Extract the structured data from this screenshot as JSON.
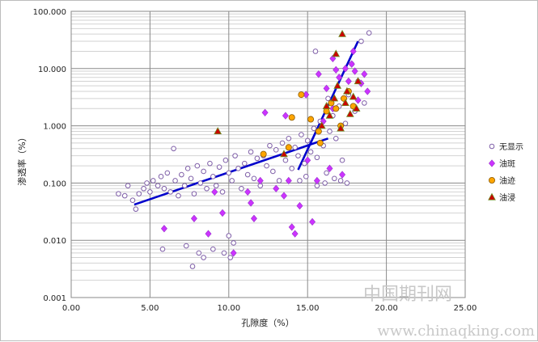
{
  "chart_data": {
    "type": "scatter",
    "title": "",
    "xlabel": "孔隙度（%）",
    "ylabel": "渗透率（%）",
    "x_ticks": [
      "0.00",
      "5.00",
      "10.00",
      "15.00",
      "20.00",
      "25.00"
    ],
    "y_ticks": [
      "100.000",
      "10.000",
      "1.000",
      "0.100",
      "0.010",
      "0.001"
    ],
    "xlim": [
      0,
      25
    ],
    "ylim": [
      0.001,
      100
    ],
    "y_scale": "log",
    "grid": true,
    "legend_position": "right",
    "series": [
      {
        "name": "无显示",
        "marker": "open-circle",
        "color": "#7f5fa8",
        "points": [
          [
            3.0,
            0.065
          ],
          [
            3.4,
            0.06
          ],
          [
            3.6,
            0.09
          ],
          [
            3.9,
            0.05
          ],
          [
            4.1,
            0.035
          ],
          [
            4.3,
            0.065
          ],
          [
            4.6,
            0.08
          ],
          [
            4.8,
            0.1
          ],
          [
            5.0,
            0.07
          ],
          [
            5.2,
            0.11
          ],
          [
            5.5,
            0.09
          ],
          [
            5.7,
            0.13
          ],
          [
            5.9,
            0.08
          ],
          [
            6.1,
            0.15
          ],
          [
            6.3,
            0.07
          ],
          [
            6.5,
            0.4
          ],
          [
            6.6,
            0.11
          ],
          [
            6.8,
            0.06
          ],
          [
            7.0,
            0.14
          ],
          [
            7.2,
            0.09
          ],
          [
            7.4,
            0.18
          ],
          [
            7.6,
            0.12
          ],
          [
            7.8,
            0.065
          ],
          [
            8.0,
            0.2
          ],
          [
            8.2,
            0.1
          ],
          [
            8.4,
            0.16
          ],
          [
            8.6,
            0.08
          ],
          [
            8.8,
            0.22
          ],
          [
            9.0,
            0.13
          ],
          [
            9.2,
            0.09
          ],
          [
            9.4,
            0.19
          ],
          [
            9.6,
            0.07
          ],
          [
            9.8,
            0.25
          ],
          [
            10.0,
            0.15
          ],
          [
            10.2,
            0.11
          ],
          [
            10.4,
            0.3
          ],
          [
            10.6,
            0.18
          ],
          [
            10.8,
            0.08
          ],
          [
            11.0,
            0.22
          ],
          [
            11.2,
            0.14
          ],
          [
            11.4,
            0.35
          ],
          [
            11.6,
            0.12
          ],
          [
            11.8,
            0.27
          ],
          [
            12.0,
            0.09
          ],
          [
            12.2,
            0.3
          ],
          [
            12.4,
            0.2
          ],
          [
            12.6,
            0.45
          ],
          [
            12.8,
            0.16
          ],
          [
            13.0,
            0.38
          ],
          [
            13.2,
            0.11
          ],
          [
            13.4,
            0.5
          ],
          [
            13.6,
            0.25
          ],
          [
            13.8,
            0.6
          ],
          [
            14.0,
            0.18
          ],
          [
            14.2,
            0.42
          ],
          [
            14.4,
            0.3
          ],
          [
            14.6,
            0.7
          ],
          [
            14.8,
            0.22
          ],
          [
            15.0,
            0.55
          ],
          [
            15.2,
            0.35
          ],
          [
            15.4,
            0.9
          ],
          [
            15.6,
            0.28
          ],
          [
            15.8,
            1.2
          ],
          [
            16.0,
            0.45
          ],
          [
            16.2,
            0.15
          ],
          [
            16.4,
            0.8
          ],
          [
            16.6,
            1.5
          ],
          [
            16.8,
            0.6
          ],
          [
            17.0,
            2.2
          ],
          [
            17.2,
            0.25
          ],
          [
            17.4,
            1.1
          ],
          [
            17.6,
            3.5
          ],
          [
            17.8,
            12.0
          ],
          [
            18.0,
            1.8
          ],
          [
            18.2,
            6.0
          ],
          [
            18.4,
            30.0
          ],
          [
            18.6,
            2.5
          ],
          [
            18.9,
            42.0
          ],
          [
            15.5,
            20.0
          ],
          [
            16.3,
            3.0
          ],
          [
            7.3,
            0.008
          ],
          [
            7.7,
            0.0035
          ],
          [
            8.1,
            0.006
          ],
          [
            8.4,
            0.005
          ],
          [
            9.0,
            0.007
          ],
          [
            9.7,
            0.006
          ],
          [
            10.0,
            0.012
          ],
          [
            10.1,
            0.005
          ],
          [
            10.3,
            0.009
          ],
          [
            5.8,
            0.007
          ],
          [
            14.5,
            0.11
          ],
          [
            14.9,
            0.13
          ],
          [
            15.6,
            0.09
          ],
          [
            16.1,
            0.1
          ],
          [
            16.7,
            0.12
          ],
          [
            17.1,
            0.11
          ],
          [
            17.5,
            0.1
          ]
        ]
      },
      {
        "name": "油斑",
        "marker": "diamond",
        "color": "#cc33ff",
        "points": [
          [
            5.9,
            0.016
          ],
          [
            7.8,
            0.024
          ],
          [
            8.7,
            0.013
          ],
          [
            9.1,
            0.07
          ],
          [
            9.6,
            0.03
          ],
          [
            10.3,
            0.006
          ],
          [
            11.2,
            0.07
          ],
          [
            11.4,
            0.045
          ],
          [
            11.6,
            0.024
          ],
          [
            12.0,
            0.11
          ],
          [
            12.3,
            1.7
          ],
          [
            13.0,
            0.08
          ],
          [
            13.5,
            0.06
          ],
          [
            13.8,
            0.11
          ],
          [
            14.0,
            0.017
          ],
          [
            14.2,
            0.013
          ],
          [
            14.5,
            0.04
          ],
          [
            14.9,
            3.5
          ],
          [
            15.0,
            0.25
          ],
          [
            15.3,
            0.021
          ],
          [
            15.6,
            0.11
          ],
          [
            15.7,
            8.0
          ],
          [
            16.0,
            1.2
          ],
          [
            16.2,
            4.5
          ],
          [
            16.4,
            0.18
          ],
          [
            16.6,
            2.0
          ],
          [
            16.8,
            9.5
          ],
          [
            17.0,
            7.0
          ],
          [
            17.2,
            0.14
          ],
          [
            17.4,
            10.0
          ],
          [
            17.6,
            6.0
          ],
          [
            17.8,
            12.0
          ],
          [
            18.0,
            9.0
          ],
          [
            18.2,
            2.8
          ],
          [
            18.4,
            5.5
          ],
          [
            18.6,
            8.0
          ],
          [
            18.8,
            4.0
          ],
          [
            17.9,
            20.0
          ],
          [
            16.6,
            15.0
          ],
          [
            13.6,
            1.5
          ]
        ]
      },
      {
        "name": "油迹",
        "marker": "filled-circle",
        "color": "#ffa500",
        "points": [
          [
            12.2,
            0.32
          ],
          [
            13.8,
            0.42
          ],
          [
            14.0,
            1.4
          ],
          [
            14.6,
            3.5
          ],
          [
            15.2,
            1.3
          ],
          [
            15.7,
            0.8
          ],
          [
            16.2,
            1.8
          ],
          [
            16.5,
            2.5
          ],
          [
            16.8,
            2.0
          ],
          [
            17.1,
            1.0
          ],
          [
            17.3,
            3.0
          ],
          [
            17.6,
            4.0
          ],
          [
            17.9,
            2.2
          ],
          [
            15.8,
            0.5
          ]
        ]
      },
      {
        "name": "油浸",
        "marker": "triangle",
        "color": "#cc0000",
        "points": [
          [
            9.3,
            0.8
          ],
          [
            13.5,
            0.32
          ],
          [
            16.4,
            1.5
          ],
          [
            16.7,
            3.0
          ],
          [
            16.9,
            5.0
          ],
          [
            17.1,
            0.9
          ],
          [
            17.2,
            40.0
          ],
          [
            17.4,
            2.5
          ],
          [
            17.5,
            4.0
          ],
          [
            17.7,
            1.6
          ],
          [
            17.9,
            3.2
          ],
          [
            18.1,
            2.0
          ],
          [
            18.2,
            6.0
          ],
          [
            16.8,
            18.0
          ],
          [
            15.9,
            1.0
          ],
          [
            16.2,
            2.2
          ]
        ]
      }
    ],
    "trend_lines": [
      {
        "points": [
          [
            4.0,
            0.042
          ],
          [
            16.3,
            0.6
          ]
        ],
        "color": "#0000cc"
      },
      {
        "points": [
          [
            14.4,
            0.17
          ],
          [
            18.2,
            30.0
          ]
        ],
        "color": "#0000cc"
      }
    ]
  },
  "watermark": {
    "cn": "中国期刊网",
    "url": "www.chinaqking.com"
  }
}
